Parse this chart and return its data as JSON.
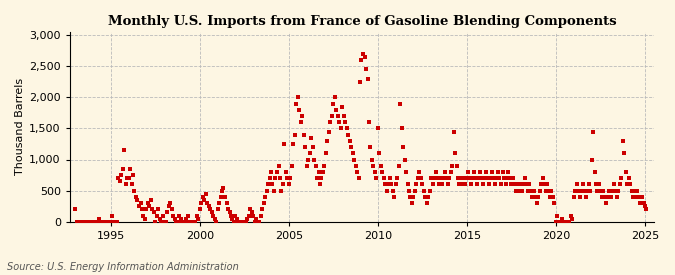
{
  "title": "Monthly U.S. Imports from France of Gasoline Blending Components",
  "ylabel": "Thousand Barrels",
  "source": "Source: U.S. Energy Information Administration",
  "bg_color": "#FDF6E3",
  "marker_color": "#CC0000",
  "xlim": [
    1992.7,
    2025.5
  ],
  "ylim": [
    0,
    3050
  ],
  "yticks": [
    0,
    500,
    1000,
    1500,
    2000,
    2500,
    3000
  ],
  "xticks": [
    1995,
    2000,
    2005,
    2010,
    2015,
    2020,
    2025
  ],
  "data": [
    [
      1993.0,
      200
    ],
    [
      1993.08,
      0
    ],
    [
      1993.17,
      0
    ],
    [
      1993.25,
      0
    ],
    [
      1993.33,
      0
    ],
    [
      1993.42,
      0
    ],
    [
      1993.5,
      0
    ],
    [
      1993.58,
      0
    ],
    [
      1993.67,
      0
    ],
    [
      1993.75,
      0
    ],
    [
      1993.83,
      0
    ],
    [
      1993.92,
      0
    ],
    [
      1994.0,
      0
    ],
    [
      1994.08,
      0
    ],
    [
      1994.17,
      0
    ],
    [
      1994.25,
      0
    ],
    [
      1994.33,
      50
    ],
    [
      1994.42,
      0
    ],
    [
      1994.5,
      0
    ],
    [
      1994.58,
      0
    ],
    [
      1994.67,
      0
    ],
    [
      1994.75,
      0
    ],
    [
      1994.83,
      0
    ],
    [
      1994.92,
      0
    ],
    [
      1995.0,
      0
    ],
    [
      1995.08,
      100
    ],
    [
      1995.17,
      0
    ],
    [
      1995.25,
      0
    ],
    [
      1995.33,
      0
    ],
    [
      1995.42,
      700
    ],
    [
      1995.5,
      650
    ],
    [
      1995.58,
      750
    ],
    [
      1995.67,
      850
    ],
    [
      1995.75,
      1150
    ],
    [
      1995.83,
      600
    ],
    [
      1995.92,
      700
    ],
    [
      1996.0,
      700
    ],
    [
      1996.08,
      850
    ],
    [
      1996.17,
      600
    ],
    [
      1996.25,
      750
    ],
    [
      1996.33,
      500
    ],
    [
      1996.42,
      400
    ],
    [
      1996.5,
      350
    ],
    [
      1996.58,
      250
    ],
    [
      1996.67,
      300
    ],
    [
      1996.75,
      200
    ],
    [
      1996.83,
      100
    ],
    [
      1996.92,
      50
    ],
    [
      1997.0,
      200
    ],
    [
      1997.08,
      300
    ],
    [
      1997.17,
      250
    ],
    [
      1997.25,
      350
    ],
    [
      1997.33,
      200
    ],
    [
      1997.42,
      150
    ],
    [
      1997.5,
      0
    ],
    [
      1997.58,
      100
    ],
    [
      1997.67,
      200
    ],
    [
      1997.75,
      50
    ],
    [
      1997.83,
      0
    ],
    [
      1997.92,
      100
    ],
    [
      1998.0,
      0
    ],
    [
      1998.08,
      0
    ],
    [
      1998.17,
      150
    ],
    [
      1998.25,
      250
    ],
    [
      1998.33,
      300
    ],
    [
      1998.42,
      200
    ],
    [
      1998.5,
      100
    ],
    [
      1998.58,
      50
    ],
    [
      1998.67,
      0
    ],
    [
      1998.75,
      0
    ],
    [
      1998.83,
      100
    ],
    [
      1998.92,
      50
    ],
    [
      1999.0,
      0
    ],
    [
      1999.08,
      0
    ],
    [
      1999.17,
      0
    ],
    [
      1999.25,
      50
    ],
    [
      1999.33,
      100
    ],
    [
      1999.42,
      0
    ],
    [
      1999.5,
      0
    ],
    [
      1999.58,
      0
    ],
    [
      1999.67,
      0
    ],
    [
      1999.75,
      0
    ],
    [
      1999.83,
      100
    ],
    [
      1999.92,
      50
    ],
    [
      2000.0,
      200
    ],
    [
      2000.08,
      300
    ],
    [
      2000.17,
      400
    ],
    [
      2000.25,
      350
    ],
    [
      2000.33,
      450
    ],
    [
      2000.42,
      300
    ],
    [
      2000.5,
      250
    ],
    [
      2000.58,
      200
    ],
    [
      2000.67,
      150
    ],
    [
      2000.75,
      100
    ],
    [
      2000.83,
      50
    ],
    [
      2000.92,
      0
    ],
    [
      2001.0,
      200
    ],
    [
      2001.08,
      300
    ],
    [
      2001.17,
      400
    ],
    [
      2001.25,
      500
    ],
    [
      2001.33,
      550
    ],
    [
      2001.42,
      400
    ],
    [
      2001.5,
      300
    ],
    [
      2001.58,
      200
    ],
    [
      2001.67,
      150
    ],
    [
      2001.75,
      100
    ],
    [
      2001.83,
      50
    ],
    [
      2001.92,
      0
    ],
    [
      2002.0,
      100
    ],
    [
      2002.08,
      50
    ],
    [
      2002.17,
      0
    ],
    [
      2002.25,
      0
    ],
    [
      2002.33,
      0
    ],
    [
      2002.42,
      0
    ],
    [
      2002.5,
      0
    ],
    [
      2002.58,
      0
    ],
    [
      2002.67,
      50
    ],
    [
      2002.75,
      100
    ],
    [
      2002.83,
      200
    ],
    [
      2002.92,
      150
    ],
    [
      2003.0,
      100
    ],
    [
      2003.08,
      0
    ],
    [
      2003.17,
      50
    ],
    [
      2003.25,
      0
    ],
    [
      2003.33,
      0
    ],
    [
      2003.42,
      100
    ],
    [
      2003.5,
      200
    ],
    [
      2003.58,
      300
    ],
    [
      2003.67,
      400
    ],
    [
      2003.75,
      500
    ],
    [
      2003.83,
      600
    ],
    [
      2003.92,
      700
    ],
    [
      2004.0,
      800
    ],
    [
      2004.08,
      600
    ],
    [
      2004.17,
      500
    ],
    [
      2004.25,
      700
    ],
    [
      2004.33,
      800
    ],
    [
      2004.42,
      900
    ],
    [
      2004.5,
      700
    ],
    [
      2004.58,
      500
    ],
    [
      2004.67,
      600
    ],
    [
      2004.75,
      1250
    ],
    [
      2004.83,
      800
    ],
    [
      2004.92,
      700
    ],
    [
      2005.0,
      600
    ],
    [
      2005.08,
      700
    ],
    [
      2005.17,
      900
    ],
    [
      2005.25,
      1250
    ],
    [
      2005.33,
      1400
    ],
    [
      2005.42,
      1900
    ],
    [
      2005.5,
      2000
    ],
    [
      2005.58,
      1800
    ],
    [
      2005.67,
      1600
    ],
    [
      2005.75,
      1700
    ],
    [
      2005.83,
      1400
    ],
    [
      2005.92,
      1200
    ],
    [
      2006.0,
      900
    ],
    [
      2006.08,
      1000
    ],
    [
      2006.17,
      1100
    ],
    [
      2006.25,
      1350
    ],
    [
      2006.33,
      1200
    ],
    [
      2006.42,
      1000
    ],
    [
      2006.5,
      900
    ],
    [
      2006.58,
      700
    ],
    [
      2006.67,
      800
    ],
    [
      2006.75,
      600
    ],
    [
      2006.83,
      700
    ],
    [
      2006.92,
      800
    ],
    [
      2007.0,
      900
    ],
    [
      2007.08,
      1100
    ],
    [
      2007.17,
      1300
    ],
    [
      2007.25,
      1450
    ],
    [
      2007.33,
      1600
    ],
    [
      2007.42,
      1700
    ],
    [
      2007.5,
      1900
    ],
    [
      2007.58,
      2000
    ],
    [
      2007.67,
      1800
    ],
    [
      2007.75,
      1700
    ],
    [
      2007.83,
      1600
    ],
    [
      2007.92,
      1500
    ],
    [
      2008.0,
      1850
    ],
    [
      2008.08,
      1700
    ],
    [
      2008.17,
      1600
    ],
    [
      2008.25,
      1500
    ],
    [
      2008.33,
      1400
    ],
    [
      2008.42,
      1300
    ],
    [
      2008.5,
      1200
    ],
    [
      2008.58,
      1100
    ],
    [
      2008.67,
      1000
    ],
    [
      2008.75,
      900
    ],
    [
      2008.83,
      800
    ],
    [
      2008.92,
      700
    ],
    [
      2009.0,
      2250
    ],
    [
      2009.08,
      2600
    ],
    [
      2009.17,
      2700
    ],
    [
      2009.25,
      2650
    ],
    [
      2009.33,
      2450
    ],
    [
      2009.42,
      2300
    ],
    [
      2009.5,
      1600
    ],
    [
      2009.58,
      1200
    ],
    [
      2009.67,
      1000
    ],
    [
      2009.75,
      900
    ],
    [
      2009.83,
      800
    ],
    [
      2009.92,
      700
    ],
    [
      2010.0,
      1500
    ],
    [
      2010.08,
      1100
    ],
    [
      2010.17,
      900
    ],
    [
      2010.25,
      800
    ],
    [
      2010.33,
      700
    ],
    [
      2010.42,
      600
    ],
    [
      2010.5,
      500
    ],
    [
      2010.58,
      600
    ],
    [
      2010.67,
      700
    ],
    [
      2010.75,
      600
    ],
    [
      2010.83,
      500
    ],
    [
      2010.92,
      400
    ],
    [
      2011.0,
      600
    ],
    [
      2011.08,
      700
    ],
    [
      2011.17,
      900
    ],
    [
      2011.25,
      1900
    ],
    [
      2011.33,
      1500
    ],
    [
      2011.42,
      1200
    ],
    [
      2011.5,
      1000
    ],
    [
      2011.58,
      800
    ],
    [
      2011.67,
      600
    ],
    [
      2011.75,
      500
    ],
    [
      2011.83,
      400
    ],
    [
      2011.92,
      300
    ],
    [
      2012.0,
      400
    ],
    [
      2012.08,
      500
    ],
    [
      2012.17,
      600
    ],
    [
      2012.25,
      700
    ],
    [
      2012.33,
      800
    ],
    [
      2012.42,
      700
    ],
    [
      2012.5,
      600
    ],
    [
      2012.58,
      500
    ],
    [
      2012.67,
      400
    ],
    [
      2012.75,
      300
    ],
    [
      2012.83,
      400
    ],
    [
      2012.92,
      500
    ],
    [
      2013.0,
      700
    ],
    [
      2013.08,
      600
    ],
    [
      2013.17,
      700
    ],
    [
      2013.25,
      800
    ],
    [
      2013.33,
      700
    ],
    [
      2013.42,
      600
    ],
    [
      2013.5,
      700
    ],
    [
      2013.58,
      600
    ],
    [
      2013.67,
      700
    ],
    [
      2013.75,
      800
    ],
    [
      2013.83,
      700
    ],
    [
      2013.92,
      600
    ],
    [
      2014.0,
      700
    ],
    [
      2014.08,
      800
    ],
    [
      2014.17,
      900
    ],
    [
      2014.25,
      1450
    ],
    [
      2014.33,
      1100
    ],
    [
      2014.42,
      900
    ],
    [
      2014.5,
      700
    ],
    [
      2014.58,
      600
    ],
    [
      2014.67,
      700
    ],
    [
      2014.75,
      600
    ],
    [
      2014.83,
      700
    ],
    [
      2014.92,
      600
    ],
    [
      2015.0,
      700
    ],
    [
      2015.08,
      800
    ],
    [
      2015.17,
      700
    ],
    [
      2015.25,
      600
    ],
    [
      2015.33,
      700
    ],
    [
      2015.42,
      800
    ],
    [
      2015.5,
      700
    ],
    [
      2015.58,
      600
    ],
    [
      2015.67,
      700
    ],
    [
      2015.75,
      800
    ],
    [
      2015.83,
      700
    ],
    [
      2015.92,
      600
    ],
    [
      2016.0,
      700
    ],
    [
      2016.08,
      800
    ],
    [
      2016.17,
      700
    ],
    [
      2016.25,
      600
    ],
    [
      2016.33,
      700
    ],
    [
      2016.42,
      800
    ],
    [
      2016.5,
      700
    ],
    [
      2016.58,
      600
    ],
    [
      2016.67,
      700
    ],
    [
      2016.75,
      800
    ],
    [
      2016.83,
      700
    ],
    [
      2016.92,
      600
    ],
    [
      2017.0,
      800
    ],
    [
      2017.08,
      700
    ],
    [
      2017.17,
      600
    ],
    [
      2017.25,
      700
    ],
    [
      2017.33,
      800
    ],
    [
      2017.42,
      700
    ],
    [
      2017.5,
      600
    ],
    [
      2017.58,
      700
    ],
    [
      2017.67,
      600
    ],
    [
      2017.75,
      500
    ],
    [
      2017.83,
      600
    ],
    [
      2017.92,
      500
    ],
    [
      2018.0,
      600
    ],
    [
      2018.08,
      500
    ],
    [
      2018.17,
      600
    ],
    [
      2018.25,
      700
    ],
    [
      2018.33,
      600
    ],
    [
      2018.42,
      500
    ],
    [
      2018.5,
      600
    ],
    [
      2018.58,
      500
    ],
    [
      2018.67,
      400
    ],
    [
      2018.75,
      500
    ],
    [
      2018.83,
      400
    ],
    [
      2018.92,
      300
    ],
    [
      2019.0,
      400
    ],
    [
      2019.08,
      500
    ],
    [
      2019.17,
      600
    ],
    [
      2019.25,
      700
    ],
    [
      2019.33,
      600
    ],
    [
      2019.42,
      500
    ],
    [
      2019.5,
      600
    ],
    [
      2019.58,
      500
    ],
    [
      2019.67,
      400
    ],
    [
      2019.75,
      500
    ],
    [
      2019.83,
      400
    ],
    [
      2019.92,
      300
    ],
    [
      2020.0,
      0
    ],
    [
      2020.08,
      100
    ],
    [
      2020.17,
      0
    ],
    [
      2020.25,
      0
    ],
    [
      2020.33,
      50
    ],
    [
      2020.42,
      0
    ],
    [
      2020.5,
      0
    ],
    [
      2020.58,
      0
    ],
    [
      2020.67,
      0
    ],
    [
      2020.75,
      0
    ],
    [
      2020.83,
      100
    ],
    [
      2020.92,
      50
    ],
    [
      2021.0,
      400
    ],
    [
      2021.08,
      500
    ],
    [
      2021.17,
      600
    ],
    [
      2021.25,
      500
    ],
    [
      2021.33,
      400
    ],
    [
      2021.42,
      500
    ],
    [
      2021.5,
      600
    ],
    [
      2021.58,
      500
    ],
    [
      2021.67,
      400
    ],
    [
      2021.75,
      500
    ],
    [
      2021.83,
      600
    ],
    [
      2021.92,
      500
    ],
    [
      2022.0,
      1000
    ],
    [
      2022.08,
      1450
    ],
    [
      2022.17,
      800
    ],
    [
      2022.25,
      600
    ],
    [
      2022.33,
      500
    ],
    [
      2022.42,
      600
    ],
    [
      2022.5,
      500
    ],
    [
      2022.58,
      400
    ],
    [
      2022.67,
      500
    ],
    [
      2022.75,
      400
    ],
    [
      2022.83,
      300
    ],
    [
      2022.92,
      400
    ],
    [
      2023.0,
      500
    ],
    [
      2023.08,
      400
    ],
    [
      2023.17,
      500
    ],
    [
      2023.25,
      600
    ],
    [
      2023.33,
      500
    ],
    [
      2023.42,
      400
    ],
    [
      2023.5,
      500
    ],
    [
      2023.58,
      600
    ],
    [
      2023.67,
      700
    ],
    [
      2023.75,
      1300
    ],
    [
      2023.83,
      1100
    ],
    [
      2023.92,
      800
    ],
    [
      2024.0,
      600
    ],
    [
      2024.08,
      700
    ],
    [
      2024.17,
      600
    ],
    [
      2024.25,
      500
    ],
    [
      2024.33,
      400
    ],
    [
      2024.42,
      500
    ],
    [
      2024.5,
      400
    ],
    [
      2024.58,
      500
    ],
    [
      2024.67,
      400
    ],
    [
      2024.75,
      300
    ],
    [
      2024.83,
      400
    ],
    [
      2024.92,
      300
    ],
    [
      2025.0,
      250
    ],
    [
      2025.08,
      200
    ]
  ]
}
